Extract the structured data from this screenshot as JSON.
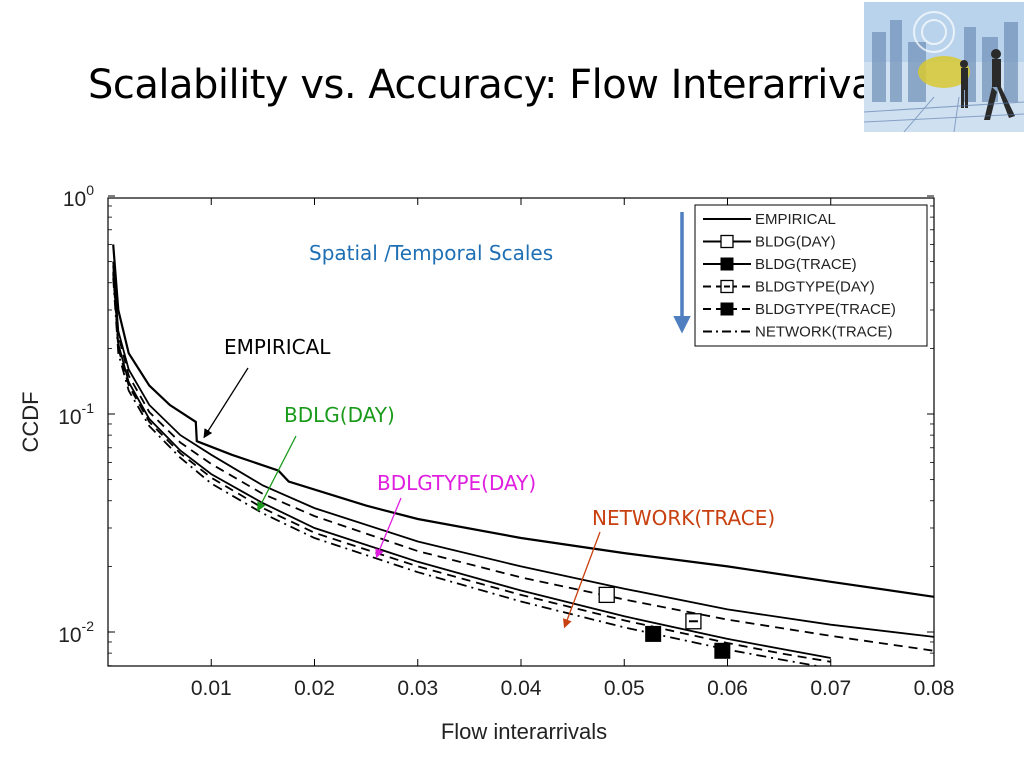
{
  "slide": {
    "title": "Scalability vs. Accuracy: Flow Interarrivals"
  },
  "chart_data": {
    "type": "line",
    "xlabel": "Flow interarrivals",
    "ylabel": "CCDF",
    "xlim": [
      0,
      0.08
    ],
    "ylim": [
      0.007,
      1
    ],
    "yscale": "log",
    "grid": false,
    "legend_position": "top-right",
    "x_ticks": [
      {
        "v": 0.01,
        "label": "0.01"
      },
      {
        "v": 0.02,
        "label": "0.02"
      },
      {
        "v": 0.03,
        "label": "0.03"
      },
      {
        "v": 0.04,
        "label": "0.04"
      },
      {
        "v": 0.05,
        "label": "0.05"
      },
      {
        "v": 0.06,
        "label": "0.06"
      },
      {
        "v": 0.07,
        "label": "0.07"
      },
      {
        "v": 0.08,
        "label": "0.08"
      }
    ],
    "y_ticks": [
      {
        "v": 1,
        "base": "10",
        "exp": "0"
      },
      {
        "v": 0.1,
        "base": "10",
        "exp": "-1"
      },
      {
        "v": 0.01,
        "base": "10",
        "exp": "-2"
      }
    ],
    "series": [
      {
        "name": "EMPIRICAL",
        "dash": "solid",
        "marker": "none",
        "points": [
          [
            0.0005,
            0.6
          ],
          [
            0.001,
            0.3
          ],
          [
            0.002,
            0.19
          ],
          [
            0.004,
            0.135
          ],
          [
            0.006,
            0.11
          ],
          [
            0.0085,
            0.092
          ],
          [
            0.0086,
            0.075
          ],
          [
            0.012,
            0.065
          ],
          [
            0.0165,
            0.055
          ],
          [
            0.0175,
            0.049
          ],
          [
            0.025,
            0.038
          ],
          [
            0.03,
            0.033
          ],
          [
            0.04,
            0.027
          ],
          [
            0.05,
            0.023
          ],
          [
            0.06,
            0.02
          ],
          [
            0.07,
            0.017
          ],
          [
            0.08,
            0.0145
          ]
        ],
        "markers": []
      },
      {
        "name": "BLDG(DAY)",
        "dash": "solid",
        "marker": "open-square",
        "points": [
          [
            0.0005,
            0.5
          ],
          [
            0.001,
            0.24
          ],
          [
            0.002,
            0.16
          ],
          [
            0.004,
            0.11
          ],
          [
            0.007,
            0.08
          ],
          [
            0.01,
            0.065
          ],
          [
            0.015,
            0.047
          ],
          [
            0.02,
            0.037
          ],
          [
            0.03,
            0.026
          ],
          [
            0.04,
            0.02
          ],
          [
            0.05,
            0.0158
          ],
          [
            0.06,
            0.0127
          ],
          [
            0.07,
            0.0108
          ],
          [
            0.08,
            0.0095
          ]
        ],
        "markers": [
          [
            0.0483,
            0.0148
          ]
        ]
      },
      {
        "name": "BLDG(TRACE)",
        "dash": "solid",
        "marker": "filled-square",
        "points": [
          [
            0.0005,
            0.45
          ],
          [
            0.001,
            0.21
          ],
          [
            0.002,
            0.14
          ],
          [
            0.004,
            0.095
          ],
          [
            0.007,
            0.068
          ],
          [
            0.01,
            0.053
          ],
          [
            0.015,
            0.039
          ],
          [
            0.02,
            0.03
          ],
          [
            0.03,
            0.021
          ],
          [
            0.04,
            0.0155
          ],
          [
            0.05,
            0.0118
          ],
          [
            0.06,
            0.0093
          ],
          [
            0.065,
            0.0084
          ],
          [
            0.07,
            0.0076
          ]
        ],
        "markers": [
          [
            0.0528,
            0.0098
          ],
          [
            0.0595,
            0.0082
          ]
        ]
      },
      {
        "name": "BLDGTYPE(DAY)",
        "dash": "dash",
        "marker": "minus-square",
        "points": [
          [
            0.0005,
            0.48
          ],
          [
            0.001,
            0.23
          ],
          [
            0.002,
            0.15
          ],
          [
            0.004,
            0.102
          ],
          [
            0.007,
            0.074
          ],
          [
            0.01,
            0.059
          ],
          [
            0.015,
            0.043
          ],
          [
            0.02,
            0.034
          ],
          [
            0.03,
            0.0235
          ],
          [
            0.04,
            0.0178
          ],
          [
            0.05,
            0.0141
          ],
          [
            0.06,
            0.0114
          ],
          [
            0.07,
            0.0096
          ],
          [
            0.08,
            0.0082
          ]
        ],
        "markers": [
          [
            0.0567,
            0.0112
          ]
        ]
      },
      {
        "name": "BLDGTYPE(TRACE)",
        "dash": "dash",
        "marker": "filled-square",
        "points": [
          [
            0.0005,
            0.44
          ],
          [
            0.001,
            0.2
          ],
          [
            0.002,
            0.135
          ],
          [
            0.004,
            0.092
          ],
          [
            0.007,
            0.066
          ],
          [
            0.01,
            0.051
          ],
          [
            0.015,
            0.037
          ],
          [
            0.02,
            0.0285
          ],
          [
            0.03,
            0.02
          ],
          [
            0.04,
            0.0148
          ],
          [
            0.05,
            0.0113
          ],
          [
            0.06,
            0.0089
          ],
          [
            0.065,
            0.008
          ],
          [
            0.07,
            0.0073
          ]
        ],
        "markers": []
      },
      {
        "name": "NETWORK(TRACE)",
        "dash": "dashdot",
        "marker": "none",
        "points": [
          [
            0.0005,
            0.42
          ],
          [
            0.001,
            0.19
          ],
          [
            0.002,
            0.128
          ],
          [
            0.004,
            0.088
          ],
          [
            0.007,
            0.063
          ],
          [
            0.01,
            0.048
          ],
          [
            0.015,
            0.035
          ],
          [
            0.02,
            0.027
          ],
          [
            0.03,
            0.0188
          ],
          [
            0.04,
            0.0138
          ],
          [
            0.05,
            0.0105
          ],
          [
            0.06,
            0.0083
          ],
          [
            0.065,
            0.0075
          ],
          [
            0.07,
            0.0068
          ]
        ],
        "markers": []
      }
    ],
    "annotations": [
      {
        "text": "Spatial /Temporal Scales",
        "color": "#1f6fb5"
      },
      {
        "text": "EMPIRICAL",
        "color": "#000000",
        "target": [
          0.0093,
          0.078
        ]
      },
      {
        "text": "BDLG(DAY)",
        "color": "#1a9a1a",
        "target": [
          0.0145,
          0.036
        ]
      },
      {
        "text": "BDLGTYPE(DAY)",
        "color": "#e01ee0",
        "target": [
          0.026,
          0.022
        ]
      },
      {
        "text": "NETWORK(TRACE)",
        "color": "#c8400f",
        "target": [
          0.0442,
          0.0105
        ]
      }
    ],
    "scale_arrow_color": "#4f7fbf"
  }
}
